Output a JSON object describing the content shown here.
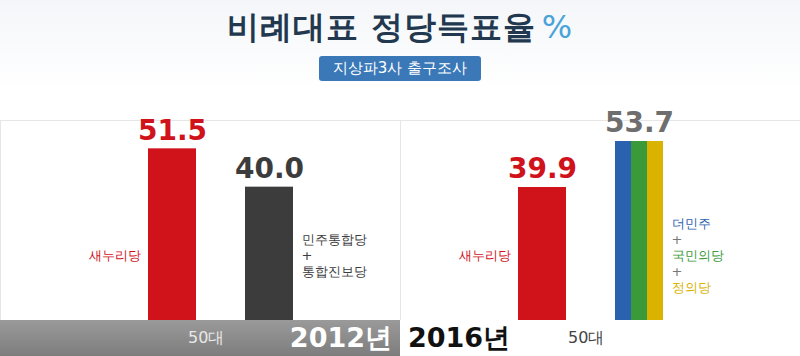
{
  "title": "비례대표 정당득표율 %",
  "subtitle": "지상파3사 출구조사",
  "chart_data": [
    {
      "type": "bar",
      "title": "2012년",
      "x_label": "50대",
      "categories": [
        "새누리당",
        "민주통합당\n+\n통합진보당"
      ],
      "values": [
        51.5,
        40.0
      ],
      "value_labels": [
        "51.5",
        "40.0"
      ],
      "colors": [
        "#d0121b",
        "#3c3c3c"
      ],
      "ylim": [
        0,
        60
      ],
      "yticks": [],
      "data_labels": true,
      "tick_labels": false
    },
    {
      "type": "bar",
      "title": "2016년",
      "x_label": "50대",
      "categories": [
        "새누리당",
        "더민주\n+\n국민의당\n+\n정의당"
      ],
      "values": [
        39.9,
        53.7
      ],
      "value_labels": [
        "39.9",
        "53.7"
      ],
      "colors": [
        "#d0121b",
        [
          "#2a62b0",
          "#3a9a3a",
          "#d9b300"
        ]
      ],
      "ylim": [
        0,
        60
      ],
      "yticks": [],
      "data_labels": true,
      "tick_labels": false
    }
  ]
}
